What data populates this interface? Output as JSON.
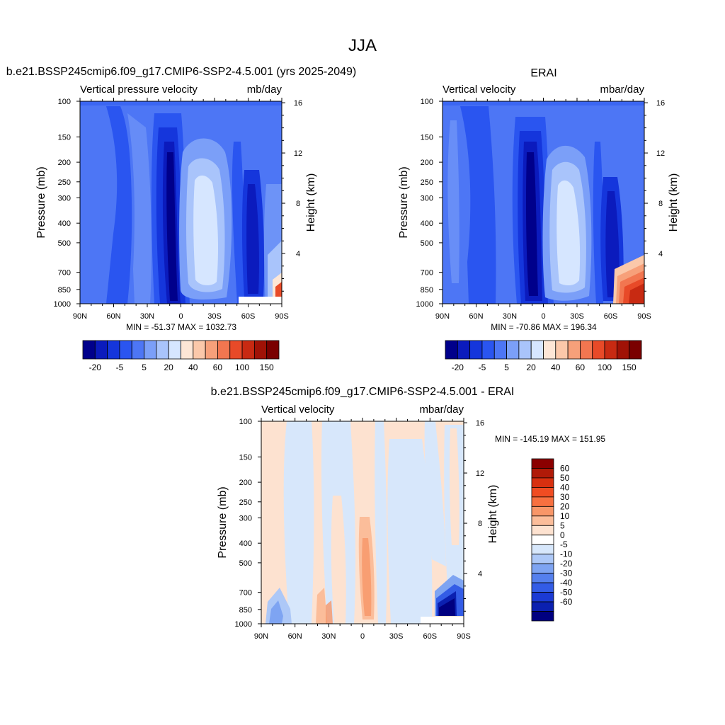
{
  "page": {
    "main_title": "JJA"
  },
  "panels": [
    {
      "title": "b.e21.BSSP245cmip6.f09_g17.CMIP6-SSP2-4.5.001 (yrs 2025-2049)",
      "left_label": "Vertical pressure velocity",
      "right_label": "mb/day",
      "ylabel": "Pressure (mb)",
      "y2label": "Height (km)",
      "stats": "MIN = -51.37  MAX = 1032.73"
    },
    {
      "title": "ERAI",
      "left_label": "Vertical velocity",
      "right_label": "mbar/day",
      "ylabel": "Pressure (mb)",
      "y2label": "Height (km)",
      "stats": "MIN = -70.86  MAX = 196.34"
    },
    {
      "title": "b.e21.BSSP245cmip6.f09_g17.CMIP6-SSP2-4.5.001 - ERAI",
      "left_label": "Vertical velocity",
      "right_label": "mbar/day",
      "ylabel": "Pressure (mb)",
      "y2label": "Height (km)",
      "stats": "MIN = -145.19  MAX = 151.95"
    }
  ],
  "chart_data": [
    {
      "type": "heatmap",
      "title": "b.e21.BSSP245cmip6.f09_g17.CMIP6-SSP2-4.5.001 (yrs 2025-2049)",
      "units": "mb/day",
      "x_ticks": [
        "90N",
        "60N",
        "30N",
        "0",
        "30S",
        "60S",
        "90S"
      ],
      "y_ticks": [
        "100",
        "150",
        "200",
        "250",
        "300",
        "400",
        "500",
        "700",
        "850",
        "1000"
      ],
      "y2_ticks": [
        "16",
        "12",
        "8",
        "4"
      ],
      "ylim": [
        1000,
        100
      ],
      "colorbar_labels": [
        "-20",
        "-5",
        "5",
        "20",
        "40",
        "60",
        "100",
        "150"
      ],
      "colors": [
        "#00008b",
        "#0b1bbd",
        "#1536dc",
        "#2a55f0",
        "#4d76f5",
        "#7b9ff8",
        "#a9c4fb",
        "#d6e6ff",
        "#fde6d6",
        "#fbc8aa",
        "#f7a07a",
        "#f27650",
        "#e84a28",
        "#c82a12",
        "#a01206",
        "#7a0000"
      ],
      "stats": {
        "min": -51.37,
        "max": 1032.73
      }
    },
    {
      "type": "heatmap",
      "title": "ERAI",
      "units": "mbar/day",
      "x_ticks": [
        "90N",
        "60N",
        "30N",
        "0",
        "30S",
        "60S",
        "90S"
      ],
      "y_ticks": [
        "100",
        "150",
        "200",
        "250",
        "300",
        "400",
        "500",
        "700",
        "850",
        "1000"
      ],
      "y2_ticks": [
        "16",
        "12",
        "8",
        "4"
      ],
      "ylim": [
        1000,
        100
      ],
      "colorbar_labels": [
        "-20",
        "-5",
        "5",
        "20",
        "40",
        "60",
        "100",
        "150"
      ],
      "colors": [
        "#00008b",
        "#0b1bbd",
        "#1536dc",
        "#2a55f0",
        "#4d76f5",
        "#7b9ff8",
        "#a9c4fb",
        "#d6e6ff",
        "#fde6d6",
        "#fbc8aa",
        "#f7a07a",
        "#f27650",
        "#e84a28",
        "#c82a12",
        "#a01206",
        "#7a0000"
      ],
      "stats": {
        "min": -70.86,
        "max": 196.34
      }
    },
    {
      "type": "heatmap",
      "title": "b.e21.BSSP245cmip6.f09_g17.CMIP6-SSP2-4.5.001 - ERAI",
      "units": "mbar/day",
      "x_ticks": [
        "90N",
        "60N",
        "30N",
        "0",
        "30S",
        "60S",
        "90S"
      ],
      "y_ticks": [
        "100",
        "150",
        "200",
        "250",
        "300",
        "400",
        "500",
        "700",
        "850",
        "1000"
      ],
      "y2_ticks": [
        "16",
        "12",
        "8",
        "4"
      ],
      "ylim": [
        1000,
        100
      ],
      "colorbar_labels": [
        "60",
        "50",
        "40",
        "30",
        "20",
        "10",
        "5",
        "0",
        "-5",
        "-10",
        "-20",
        "-30",
        "-40",
        "-50",
        "-60"
      ],
      "colors": [
        "#8b0000",
        "#b01a08",
        "#d83010",
        "#f04c22",
        "#f77040",
        "#f89668",
        "#fbbd9a",
        "#fde2d0",
        "#ffffff",
        "#d7e7fb",
        "#adc8f7",
        "#7ea4f2",
        "#5580ee",
        "#335ce6",
        "#1b3ad4",
        "#0b20b0",
        "#000080"
      ],
      "stats": {
        "min": -145.19,
        "max": 151.95
      }
    }
  ]
}
